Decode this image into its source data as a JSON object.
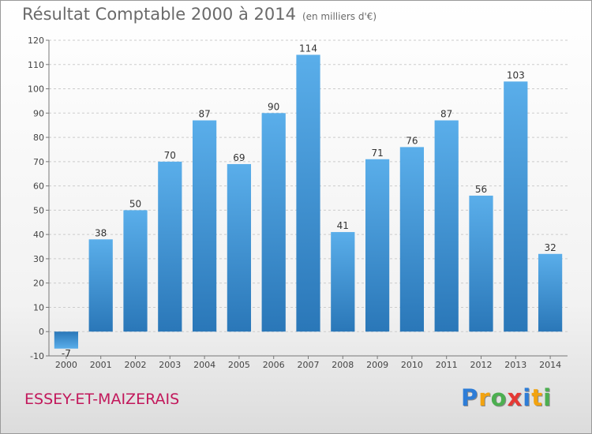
{
  "header": {
    "title": "Résultat Comptable 2000 à 2014",
    "subtitle": "(en milliers d'€)"
  },
  "footer": {
    "commune": "ESSEY-ET-MAIZERAIS"
  },
  "logo": {
    "text": "Proxiti",
    "letters": [
      {
        "char": "P",
        "color": "#2e7dd7"
      },
      {
        "char": "r",
        "color": "#f2a30f"
      },
      {
        "char": "o",
        "color": "#4caf50"
      },
      {
        "char": "x",
        "color": "#e53935"
      },
      {
        "char": "i",
        "color": "#2e7dd7"
      },
      {
        "char": "t",
        "color": "#f2a30f"
      },
      {
        "char": "i",
        "color": "#4caf50"
      }
    ]
  },
  "colors": {
    "bar_top": "#5aaeea",
    "bar_bottom": "#2a77b8",
    "grid": "#cccccc",
    "axis_text": "#444444"
  },
  "chart_data": {
    "type": "bar",
    "title": "Résultat Comptable 2000 à 2014",
    "subtitle": "(en milliers d'€)",
    "xlabel": "",
    "ylabel": "",
    "categories": [
      "2000",
      "2001",
      "2002",
      "2003",
      "2004",
      "2005",
      "2006",
      "2007",
      "2008",
      "2009",
      "2010",
      "2011",
      "2012",
      "2013",
      "2014"
    ],
    "values": [
      -7,
      38,
      50,
      70,
      87,
      69,
      90,
      114,
      41,
      71,
      76,
      87,
      56,
      103,
      32
    ],
    "ylim": [
      -10,
      120
    ],
    "yticks": [
      -10,
      0,
      10,
      20,
      30,
      40,
      50,
      60,
      70,
      80,
      90,
      100,
      110,
      120
    ],
    "grid": true,
    "grid_axis": "y"
  }
}
